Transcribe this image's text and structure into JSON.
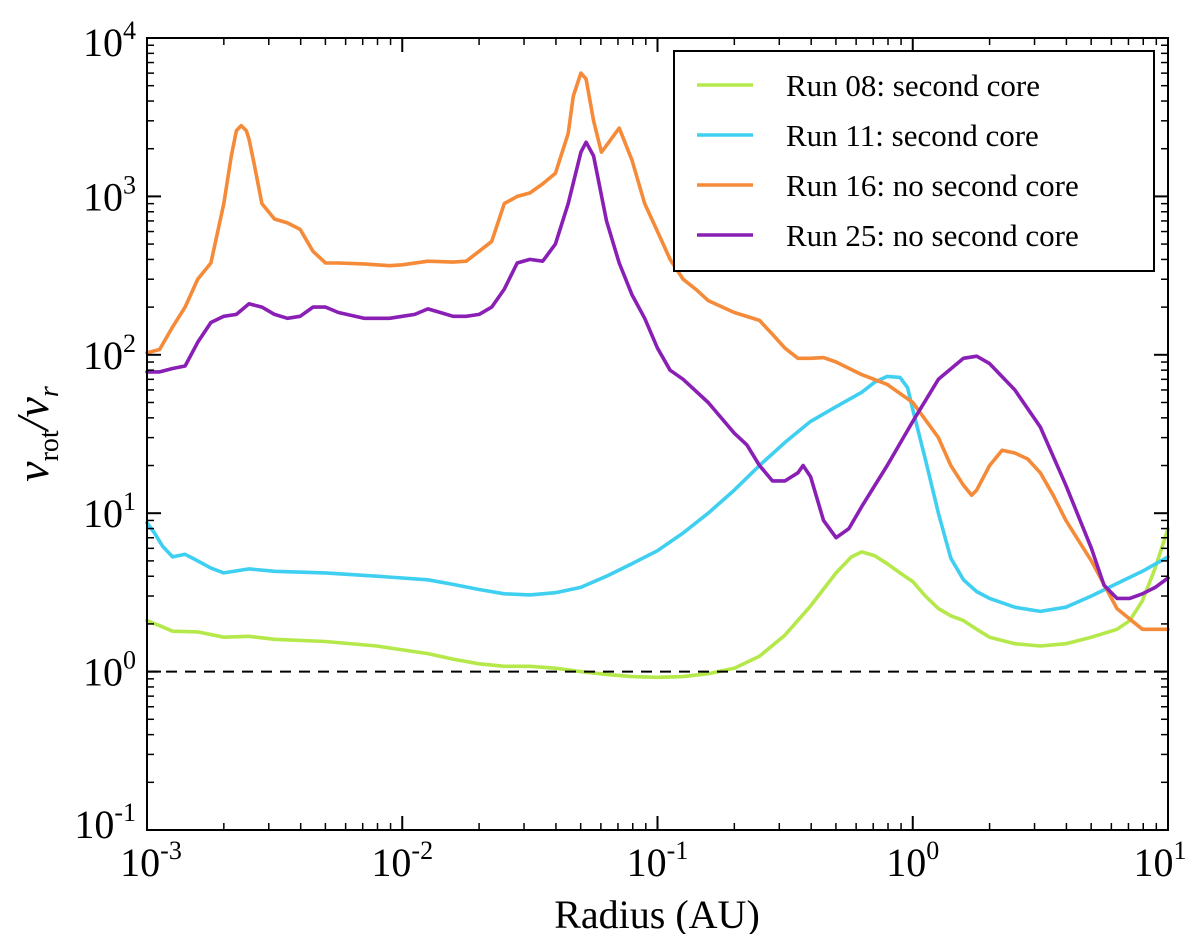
{
  "chart_data": {
    "type": "line",
    "x_scale": "log",
    "y_scale": "log",
    "xlim": [
      0.001,
      10
    ],
    "ylim": [
      0.1,
      10000
    ],
    "xlabel": "Radius (AU)",
    "ylabel": {
      "v": "v",
      "rot": "rot",
      "slash": "/",
      "r": "r"
    },
    "grid": false,
    "legend_position": "top-right",
    "x_ticks": [
      {
        "base": "10",
        "exp": "-3",
        "value": 0.001
      },
      {
        "base": "10",
        "exp": "-2",
        "value": 0.01
      },
      {
        "base": "10",
        "exp": "-1",
        "value": 0.1
      },
      {
        "base": "10",
        "exp": "0",
        "value": 1
      },
      {
        "base": "10",
        "exp": "1",
        "value": 10
      }
    ],
    "y_ticks": [
      {
        "base": "10",
        "exp": "-1",
        "value": 0.1
      },
      {
        "base": "10",
        "exp": "0",
        "value": 1
      },
      {
        "base": "10",
        "exp": "1",
        "value": 10
      },
      {
        "base": "10",
        "exp": "2",
        "value": 100
      },
      {
        "base": "10",
        "exp": "3",
        "value": 1000
      },
      {
        "base": "10",
        "exp": "4",
        "value": 10000
      }
    ],
    "reference_line": {
      "y": 1,
      "style": "dashed",
      "color": "#000000"
    },
    "series": [
      {
        "name": "Run 08: second core",
        "color": "#b5e84a",
        "x": [
          0.001,
          0.00112,
          0.00126,
          0.00158,
          0.002,
          0.00251,
          0.00316,
          0.005,
          0.00794,
          0.0126,
          0.0158,
          0.02,
          0.0251,
          0.0316,
          0.0398,
          0.05,
          0.0631,
          0.0794,
          0.1,
          0.126,
          0.158,
          0.2,
          0.251,
          0.316,
          0.398,
          0.501,
          0.575,
          0.631,
          0.708,
          0.794,
          0.891,
          1.0,
          1.12,
          1.26,
          1.41,
          1.58,
          1.78,
          2.0,
          2.51,
          3.16,
          3.98,
          5.01,
          6.31,
          7.08,
          7.94,
          8.91,
          10.0
        ],
        "y": [
          2.1,
          1.95,
          1.8,
          1.78,
          1.65,
          1.67,
          1.6,
          1.55,
          1.45,
          1.3,
          1.2,
          1.12,
          1.08,
          1.08,
          1.05,
          1.0,
          0.96,
          0.93,
          0.92,
          0.93,
          0.97,
          1.05,
          1.25,
          1.7,
          2.6,
          4.2,
          5.3,
          5.7,
          5.4,
          4.8,
          4.2,
          3.7,
          3.0,
          2.5,
          2.25,
          2.1,
          1.85,
          1.65,
          1.5,
          1.45,
          1.5,
          1.65,
          1.85,
          2.1,
          2.8,
          4.5,
          8.0
        ]
      },
      {
        "name": "Run 11: second core",
        "color": "#3fcff0",
        "x": [
          0.001,
          0.00107,
          0.00115,
          0.00126,
          0.00141,
          0.00158,
          0.00178,
          0.002,
          0.00251,
          0.00316,
          0.005,
          0.00794,
          0.0126,
          0.0158,
          0.02,
          0.0251,
          0.0316,
          0.0398,
          0.05,
          0.0631,
          0.0794,
          0.1,
          0.126,
          0.158,
          0.2,
          0.251,
          0.316,
          0.398,
          0.501,
          0.631,
          0.708,
          0.794,
          0.891,
          0.955,
          1.0,
          1.12,
          1.26,
          1.41,
          1.58,
          1.78,
          2.0,
          2.51,
          3.16,
          3.98,
          5.01,
          6.31,
          7.94,
          10.0
        ],
        "y": [
          8.7,
          7.5,
          6.2,
          5.3,
          5.5,
          5.0,
          4.5,
          4.2,
          4.45,
          4.3,
          4.2,
          4.0,
          3.8,
          3.55,
          3.3,
          3.1,
          3.05,
          3.15,
          3.4,
          4.0,
          4.8,
          5.8,
          7.5,
          10.0,
          14.0,
          20.0,
          28.0,
          38.0,
          47.0,
          58.0,
          67.0,
          73.0,
          72.0,
          62.0,
          45.0,
          22.0,
          10.0,
          5.2,
          3.8,
          3.2,
          2.9,
          2.55,
          2.4,
          2.55,
          3.0,
          3.6,
          4.3,
          5.3
        ]
      },
      {
        "name": "Run 16: no second core",
        "color": "#f58a38",
        "x": [
          0.001,
          0.00112,
          0.00126,
          0.00141,
          0.00158,
          0.00178,
          0.002,
          0.00214,
          0.00224,
          0.00234,
          0.00245,
          0.00251,
          0.00263,
          0.00282,
          0.00316,
          0.00355,
          0.00398,
          0.00447,
          0.00501,
          0.00562,
          0.00708,
          0.00891,
          0.01,
          0.0126,
          0.0158,
          0.0178,
          0.02,
          0.0224,
          0.0251,
          0.0282,
          0.0316,
          0.0355,
          0.0398,
          0.0447,
          0.0468,
          0.0501,
          0.0525,
          0.0562,
          0.0603,
          0.0631,
          0.0708,
          0.0794,
          0.0891,
          0.1,
          0.112,
          0.126,
          0.141,
          0.158,
          0.2,
          0.251,
          0.282,
          0.316,
          0.355,
          0.398,
          0.447,
          0.501,
          0.631,
          0.794,
          1.0,
          1.26,
          1.41,
          1.58,
          1.7,
          1.78,
          2.0,
          2.24,
          2.51,
          2.82,
          3.16,
          3.55,
          3.98,
          5.01,
          6.31,
          7.94,
          10.0
        ],
        "y": [
          103,
          108,
          150,
          200,
          300,
          380,
          900,
          1800,
          2600,
          2800,
          2600,
          2300,
          1600,
          900,
          720,
          680,
          620,
          450,
          380,
          380,
          375,
          365,
          370,
          390,
          385,
          390,
          450,
          520,
          900,
          1000,
          1050,
          1200,
          1400,
          2500,
          4300,
          6000,
          5500,
          3000,
          1900,
          2100,
          2700,
          1700,
          900,
          600,
          400,
          300,
          260,
          220,
          185,
          165,
          135,
          110,
          95,
          95,
          96,
          90,
          75,
          65,
          50,
          30,
          20,
          15,
          13,
          14,
          20,
          25,
          24,
          22,
          18,
          13,
          9,
          5.0,
          2.5,
          1.85,
          1.85
        ]
      },
      {
        "name": "Run 25: no second core",
        "color": "#8a1fb5",
        "x": [
          0.001,
          0.00112,
          0.00126,
          0.00141,
          0.00158,
          0.00178,
          0.002,
          0.00224,
          0.00251,
          0.00282,
          0.00316,
          0.00355,
          0.00398,
          0.00447,
          0.00501,
          0.00562,
          0.00708,
          0.00891,
          0.01,
          0.0112,
          0.0126,
          0.0141,
          0.0158,
          0.0178,
          0.02,
          0.0224,
          0.0251,
          0.0282,
          0.0316,
          0.0355,
          0.0398,
          0.0447,
          0.0501,
          0.0525,
          0.0562,
          0.0631,
          0.0708,
          0.0794,
          0.0891,
          0.1,
          0.112,
          0.126,
          0.158,
          0.2,
          0.224,
          0.251,
          0.282,
          0.316,
          0.355,
          0.372,
          0.398,
          0.447,
          0.501,
          0.562,
          0.631,
          0.794,
          1.0,
          1.26,
          1.58,
          1.78,
          2.0,
          2.51,
          3.16,
          3.98,
          5.01,
          5.62,
          6.31,
          7.08,
          7.94,
          8.91,
          10.0
        ],
        "y": [
          78,
          78,
          82,
          85,
          120,
          160,
          175,
          180,
          210,
          200,
          180,
          170,
          175,
          200,
          200,
          185,
          170,
          170,
          175,
          180,
          195,
          185,
          175,
          175,
          180,
          200,
          260,
          380,
          400,
          390,
          500,
          900,
          1900,
          2200,
          1800,
          700,
          380,
          240,
          170,
          110,
          80,
          70,
          50,
          32,
          27,
          20,
          16,
          16,
          18,
          20,
          17,
          9,
          7.0,
          8.0,
          11,
          20,
          38,
          70,
          95,
          98,
          88,
          60,
          35,
          15,
          6.0,
          3.5,
          2.9,
          2.9,
          3.1,
          3.4,
          3.9
        ]
      }
    ]
  }
}
